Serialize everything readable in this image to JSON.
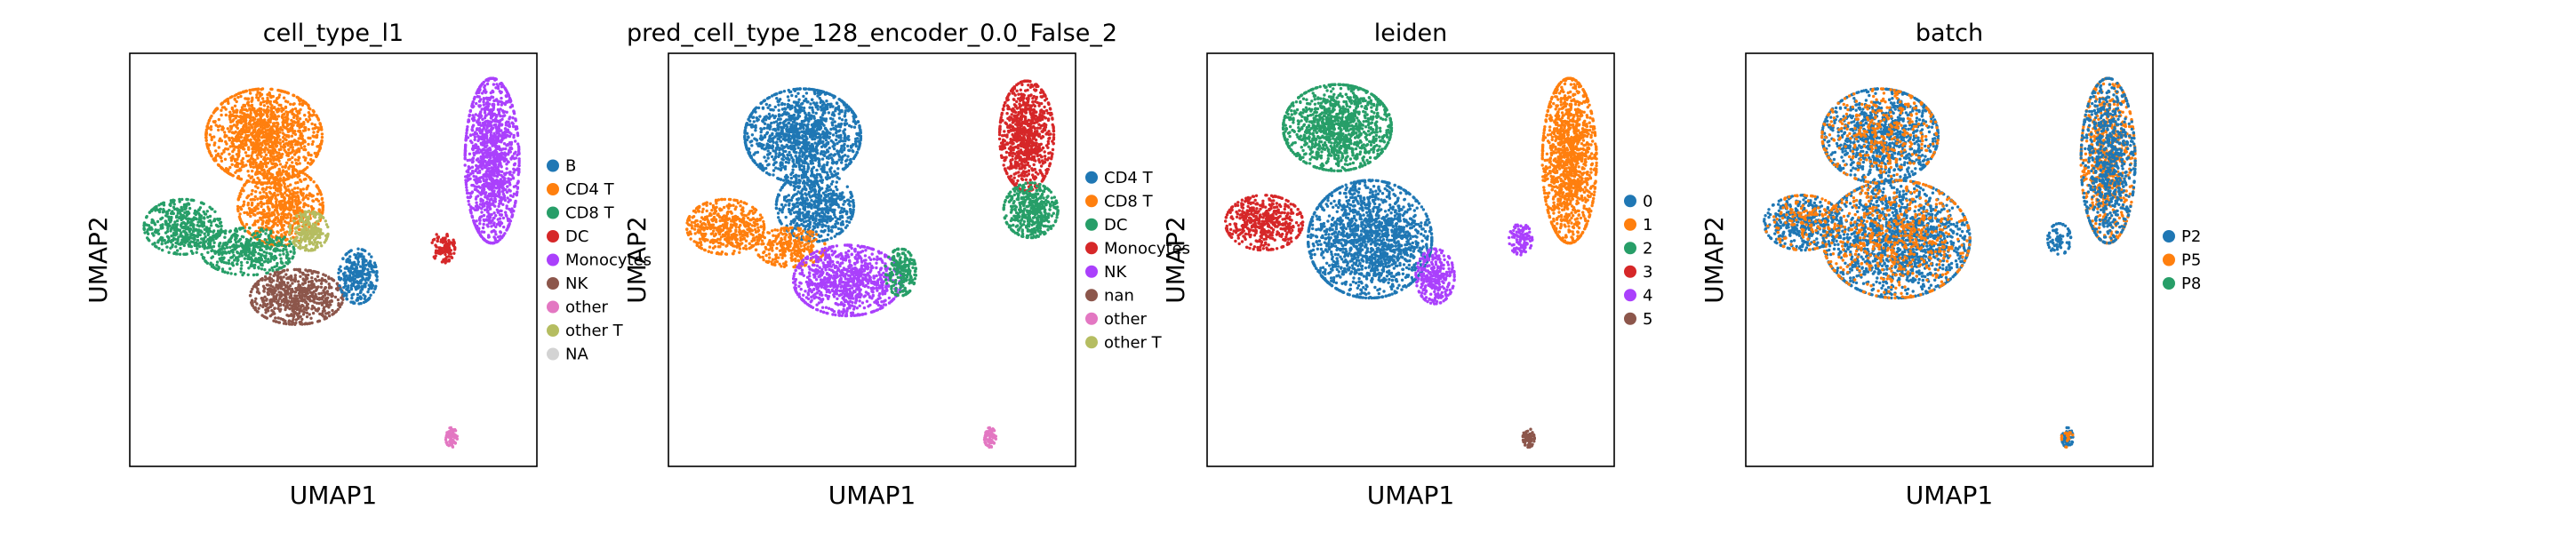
{
  "chart_data": [
    {
      "type": "scatter",
      "title": "cell_type_l1",
      "xlabel": "UMAP1",
      "ylabel": "UMAP2",
      "xticks": false,
      "yticks": false,
      "legend_position": "right",
      "legend": [
        {
          "label": "B",
          "color": "#1f77b4"
        },
        {
          "label": "CD4 T",
          "color": "#ff7f0e"
        },
        {
          "label": "CD8 T",
          "color": "#279e68"
        },
        {
          "label": "DC",
          "color": "#d62728"
        },
        {
          "label": "Monocytes",
          "color": "#aa40fc"
        },
        {
          "label": "NK",
          "color": "#8c564b"
        },
        {
          "label": "other",
          "color": "#e377c2"
        },
        {
          "label": "other T",
          "color": "#b5bd61"
        },
        {
          "label": "NA",
          "color": "#d3d3d3"
        }
      ],
      "clusters": [
        {
          "category": "CD4 T",
          "cx": 0.33,
          "cy": 0.8,
          "rx": 0.15,
          "ry": 0.12,
          "n": 1300
        },
        {
          "category": "CD4 T",
          "cx": 0.37,
          "cy": 0.63,
          "rx": 0.11,
          "ry": 0.1,
          "n": 700
        },
        {
          "category": "CD8 T",
          "cx": 0.13,
          "cy": 0.58,
          "rx": 0.1,
          "ry": 0.07,
          "n": 500
        },
        {
          "category": "CD8 T",
          "cx": 0.29,
          "cy": 0.52,
          "rx": 0.12,
          "ry": 0.06,
          "n": 450
        },
        {
          "category": "other T",
          "cx": 0.44,
          "cy": 0.57,
          "rx": 0.05,
          "ry": 0.05,
          "n": 220
        },
        {
          "category": "NK",
          "cx": 0.41,
          "cy": 0.41,
          "rx": 0.12,
          "ry": 0.07,
          "n": 650
        },
        {
          "category": "B",
          "cx": 0.56,
          "cy": 0.46,
          "rx": 0.05,
          "ry": 0.07,
          "n": 300
        },
        {
          "category": "Monocytes",
          "cx": 0.89,
          "cy": 0.74,
          "rx": 0.07,
          "ry": 0.21,
          "n": 1300
        },
        {
          "category": "DC",
          "cx": 0.77,
          "cy": 0.53,
          "rx": 0.03,
          "ry": 0.04,
          "n": 110
        },
        {
          "category": "other",
          "cx": 0.79,
          "cy": 0.07,
          "rx": 0.015,
          "ry": 0.025,
          "n": 70
        }
      ]
    },
    {
      "type": "scatter",
      "title": "pred_cell_type_128_encoder_0.0_False_2",
      "xlabel": "UMAP1",
      "ylabel": "UMAP2",
      "xticks": false,
      "yticks": false,
      "legend_position": "right",
      "legend": [
        {
          "label": "CD4 T",
          "color": "#1f77b4"
        },
        {
          "label": "CD8 T",
          "color": "#ff7f0e"
        },
        {
          "label": "DC",
          "color": "#279e68"
        },
        {
          "label": "Monocytes",
          "color": "#d62728"
        },
        {
          "label": "NK",
          "color": "#aa40fc"
        },
        {
          "label": "nan",
          "color": "#8c564b"
        },
        {
          "label": "other",
          "color": "#e377c2"
        },
        {
          "label": "other T",
          "color": "#b5bd61"
        }
      ],
      "clusters": [
        {
          "category": "CD4 T",
          "cx": 0.33,
          "cy": 0.8,
          "rx": 0.15,
          "ry": 0.12,
          "n": 1300
        },
        {
          "category": "CD4 T",
          "cx": 0.36,
          "cy": 0.63,
          "rx": 0.1,
          "ry": 0.09,
          "n": 600
        },
        {
          "category": "CD8 T",
          "cx": 0.14,
          "cy": 0.58,
          "rx": 0.1,
          "ry": 0.07,
          "n": 500
        },
        {
          "category": "CD8 T",
          "cx": 0.3,
          "cy": 0.53,
          "rx": 0.09,
          "ry": 0.05,
          "n": 300
        },
        {
          "category": "NK",
          "cx": 0.44,
          "cy": 0.45,
          "rx": 0.14,
          "ry": 0.09,
          "n": 900
        },
        {
          "category": "DC",
          "cx": 0.57,
          "cy": 0.47,
          "rx": 0.04,
          "ry": 0.06,
          "n": 220
        },
        {
          "category": "Monocytes",
          "cx": 0.88,
          "cy": 0.8,
          "rx": 0.07,
          "ry": 0.14,
          "n": 900
        },
        {
          "category": "DC",
          "cx": 0.89,
          "cy": 0.62,
          "rx": 0.07,
          "ry": 0.07,
          "n": 450
        },
        {
          "category": "other",
          "cx": 0.79,
          "cy": 0.07,
          "rx": 0.015,
          "ry": 0.025,
          "n": 70
        }
      ]
    },
    {
      "type": "scatter",
      "title": "leiden",
      "xlabel": "UMAP1",
      "ylabel": "UMAP2",
      "xticks": false,
      "yticks": false,
      "legend_position": "right",
      "legend": [
        {
          "label": "0",
          "color": "#1f77b4"
        },
        {
          "label": "1",
          "color": "#ff7f0e"
        },
        {
          "label": "2",
          "color": "#279e68"
        },
        {
          "label": "3",
          "color": "#d62728"
        },
        {
          "label": "4",
          "color": "#aa40fc"
        },
        {
          "label": "5",
          "color": "#8c564b"
        }
      ],
      "clusters": [
        {
          "category": "2",
          "cx": 0.32,
          "cy": 0.82,
          "rx": 0.14,
          "ry": 0.11,
          "n": 1200
        },
        {
          "category": "0",
          "cx": 0.4,
          "cy": 0.55,
          "rx": 0.16,
          "ry": 0.15,
          "n": 1600
        },
        {
          "category": "3",
          "cx": 0.14,
          "cy": 0.59,
          "rx": 0.1,
          "ry": 0.07,
          "n": 500
        },
        {
          "category": "4",
          "cx": 0.56,
          "cy": 0.46,
          "rx": 0.05,
          "ry": 0.07,
          "n": 300
        },
        {
          "category": "1",
          "cx": 0.89,
          "cy": 0.74,
          "rx": 0.07,
          "ry": 0.21,
          "n": 1300
        },
        {
          "category": "4",
          "cx": 0.77,
          "cy": 0.55,
          "rx": 0.03,
          "ry": 0.04,
          "n": 110
        },
        {
          "category": "5",
          "cx": 0.79,
          "cy": 0.07,
          "rx": 0.015,
          "ry": 0.025,
          "n": 70
        }
      ]
    },
    {
      "type": "scatter",
      "title": "batch",
      "xlabel": "UMAP1",
      "ylabel": "UMAP2",
      "xticks": false,
      "yticks": false,
      "legend_position": "right",
      "legend": [
        {
          "label": "P2",
          "color": "#1f77b4"
        },
        {
          "label": "P5",
          "color": "#ff7f0e"
        },
        {
          "label": "P8",
          "color": "#279e68"
        }
      ],
      "clusters": [
        {
          "category": "P2",
          "cx": 0.33,
          "cy": 0.8,
          "rx": 0.15,
          "ry": 0.12,
          "n": 1000
        },
        {
          "category": "P5",
          "cx": 0.33,
          "cy": 0.8,
          "rx": 0.15,
          "ry": 0.12,
          "n": 350
        },
        {
          "category": "P2",
          "cx": 0.37,
          "cy": 0.55,
          "rx": 0.19,
          "ry": 0.15,
          "n": 1500
        },
        {
          "category": "P5",
          "cx": 0.37,
          "cy": 0.55,
          "rx": 0.19,
          "ry": 0.15,
          "n": 600
        },
        {
          "category": "P2",
          "cx": 0.14,
          "cy": 0.59,
          "rx": 0.1,
          "ry": 0.07,
          "n": 400
        },
        {
          "category": "P5",
          "cx": 0.14,
          "cy": 0.59,
          "rx": 0.1,
          "ry": 0.07,
          "n": 150
        },
        {
          "category": "P5",
          "cx": 0.89,
          "cy": 0.74,
          "rx": 0.07,
          "ry": 0.21,
          "n": 700
        },
        {
          "category": "P2",
          "cx": 0.89,
          "cy": 0.74,
          "rx": 0.07,
          "ry": 0.21,
          "n": 700
        },
        {
          "category": "P2",
          "cx": 0.77,
          "cy": 0.55,
          "rx": 0.03,
          "ry": 0.04,
          "n": 80
        },
        {
          "category": "P2",
          "cx": 0.79,
          "cy": 0.07,
          "rx": 0.015,
          "ry": 0.025,
          "n": 50
        },
        {
          "category": "P5",
          "cx": 0.79,
          "cy": 0.07,
          "rx": 0.015,
          "ry": 0.025,
          "n": 20
        }
      ]
    }
  ]
}
